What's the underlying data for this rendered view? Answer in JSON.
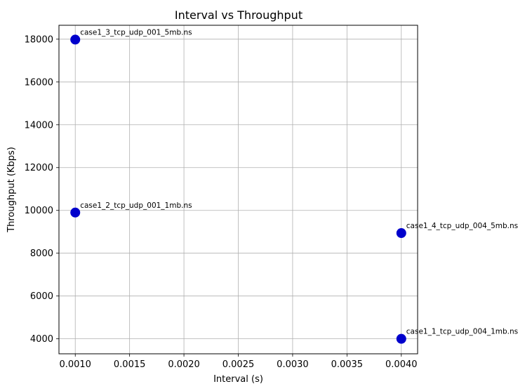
{
  "chart_data": {
    "type": "scatter",
    "title": "Interval vs Throughput",
    "xlabel": "Interval (s)",
    "ylabel": "Throughput (Kbps)",
    "xlim": [
      0.00085,
      0.00415
    ],
    "ylim": [
      3300,
      18650
    ],
    "xticks": [
      0.001,
      0.0015,
      0.002,
      0.0025,
      0.003,
      0.0035,
      0.004
    ],
    "xtick_labels": [
      "0.0010",
      "0.0015",
      "0.0020",
      "0.0025",
      "0.0030",
      "0.0035",
      "0.0040"
    ],
    "yticks": [
      4000,
      6000,
      8000,
      10000,
      12000,
      14000,
      16000,
      18000
    ],
    "ytick_labels": [
      "4000",
      "6000",
      "8000",
      "10000",
      "12000",
      "14000",
      "16000",
      "18000"
    ],
    "grid": true,
    "marker_color": "#0000cc",
    "points": [
      {
        "x": 0.001,
        "y": 17980,
        "label": "case1_3_tcp_udp_001_5mb.ns"
      },
      {
        "x": 0.001,
        "y": 9900,
        "label": "case1_2_tcp_udp_001_1mb.ns"
      },
      {
        "x": 0.004,
        "y": 8940,
        "label": "case1_4_tcp_udp_004_5mb.ns"
      },
      {
        "x": 0.004,
        "y": 4000,
        "label": "case1_1_tcp_udp_004_1mb.ns"
      }
    ]
  }
}
